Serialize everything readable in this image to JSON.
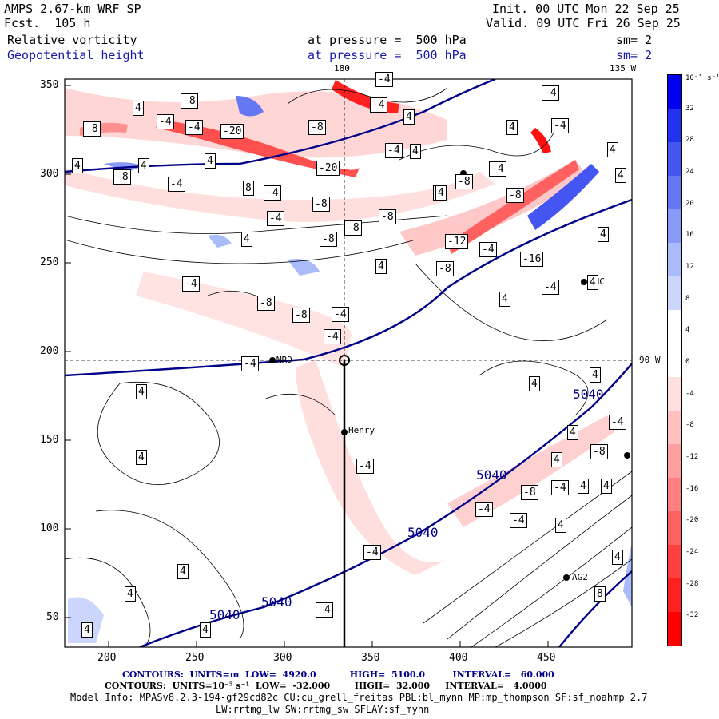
{
  "header": {
    "model": "AMPS 2.67-km WRF SP",
    "fcst": "Fcst.  105 h",
    "init": "Init. 00 UTC Mon 22 Sep 25",
    "valid": "Valid. 09 UTC Fri 26 Sep 25",
    "field1_name": "Relative vorticity",
    "field1_level": "at pressure =  500 hPa",
    "field1_sm": "sm= 2",
    "field2_name": "Geopotential height",
    "field2_level": "at pressure =  500 hPa",
    "field2_sm": "sm= 2"
  },
  "map": {
    "top_lon_label": "180",
    "top_right_lon_label": "135 W",
    "right_lat_label": "90 W",
    "x_ticks": [
      "200",
      "250",
      "300",
      "350",
      "400",
      "450"
    ],
    "y_ticks": [
      "350",
      "300",
      "250",
      "200",
      "150",
      "100",
      "50"
    ],
    "stations": [
      {
        "label": "Henry"
      },
      {
        "label": "AG2"
      },
      {
        "label": "HNC"
      },
      {
        "label": "MRD"
      }
    ],
    "height_labels": [
      "5040",
      "5040",
      "5040",
      "5040",
      "5040"
    ],
    "vorticity_labels": [
      "4",
      "-4",
      "-8",
      "8",
      "-12",
      "-16",
      "-20"
    ]
  },
  "colorbar": {
    "unit": "10⁻⁵ s⁻¹",
    "levels": [
      "32",
      "28",
      "24",
      "20",
      "16",
      "12",
      "8",
      "4",
      "0",
      "-4",
      "-8",
      "-12",
      "-16",
      "-20",
      "-24",
      "-28",
      "-32"
    ],
    "colors": [
      "#0000ee",
      "#2233f0",
      "#4455f2",
      "#6677f4",
      "#8899f7",
      "#aabbfa",
      "#ccd6fd",
      "#ffffff",
      "#ffffff",
      "#ffe0e0",
      "#ffc0c0",
      "#ffa0a0",
      "#ff8080",
      "#ff6060",
      "#ff4040",
      "#ff2020",
      "#ff0000"
    ]
  },
  "footer": {
    "contours1": "CONTOURS:  UNITS=m  LOW=  4920.0           HIGH=  5100.0         INTERVAL=   60.000",
    "contours2": "CONTOURS:  UNITS=10⁻⁵ s⁻¹  LOW=  -32.000        HIGH=  32.000     INTERVAL=   4.0000",
    "model_info": "Model Info: MPASv8.2.3-194-gf29cd82c CU:cu_grell_freitas PBL:bl_mynn MP:mp_thompson SF:sf_noahmp 2.7",
    "model_info2": "LW:rrtmg_lw SW:rrtmg_sw SFLAY:sf_mynn"
  }
}
